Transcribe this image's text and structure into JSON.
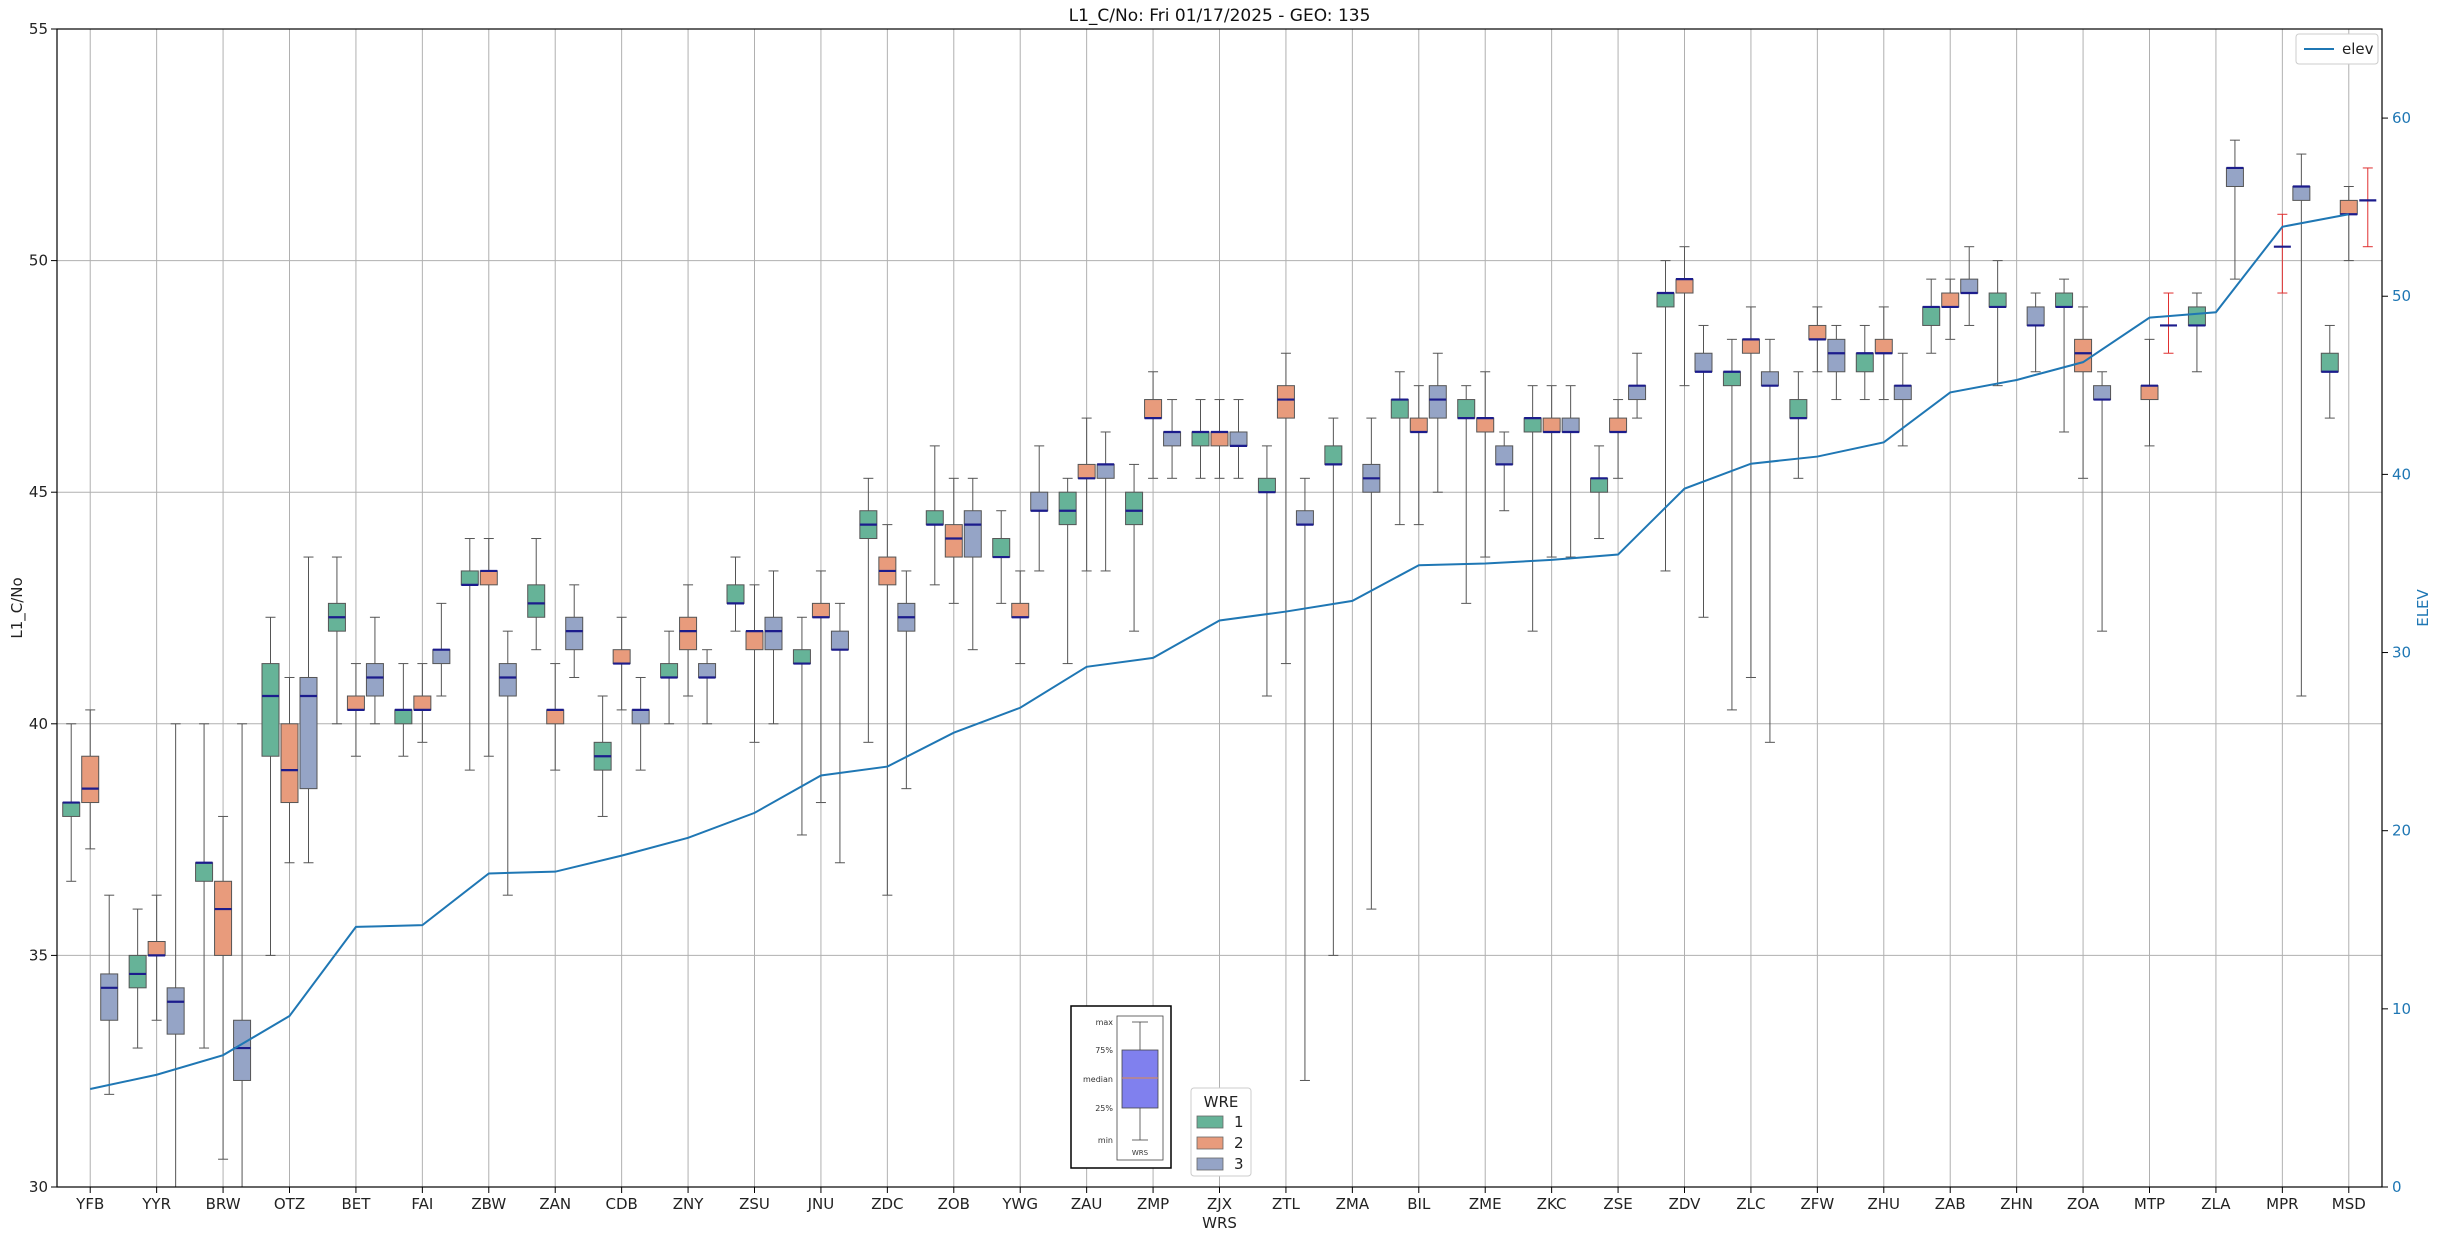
{
  "chart_data": {
    "type": "box",
    "title": "L1_C/No: Fri 01/17/2025 - GEO: 135",
    "xlabel": "WRS",
    "ylabel": "L1_C/No",
    "y2label": "ELEV",
    "ylim": [
      30,
      55
    ],
    "y2lim": [
      0,
      65
    ],
    "yticks": [
      30,
      35,
      40,
      45,
      50,
      55
    ],
    "y2ticks": [
      0,
      10,
      20,
      30,
      40,
      50,
      60
    ],
    "grid": true,
    "categories": [
      "YFB",
      "YYR",
      "BRW",
      "OTZ",
      "BET",
      "FAI",
      "ZBW",
      "ZAN",
      "CDB",
      "ZNY",
      "ZSU",
      "JNU",
      "ZDC",
      "ZOB",
      "YWG",
      "ZAU",
      "ZMP",
      "ZJX",
      "ZTL",
      "ZMA",
      "BIL",
      "ZME",
      "ZKC",
      "ZSE",
      "ZDV",
      "ZLC",
      "ZFW",
      "ZHU",
      "ZAB",
      "ZHN",
      "ZOA",
      "MTP",
      "ZLA",
      "MPR",
      "MSD"
    ],
    "series": [
      {
        "name": "1",
        "color": "#66b398",
        "values": [
          [
            36.6,
            38.0,
            38.3,
            38.3,
            40.0
          ],
          [
            33.0,
            34.3,
            34.6,
            35.0,
            36.0
          ],
          [
            33.0,
            36.6,
            37.0,
            37.0,
            40.0
          ],
          [
            35.0,
            39.3,
            40.6,
            41.3,
            42.3
          ],
          [
            40.0,
            42.0,
            42.3,
            42.6,
            43.6
          ],
          [
            39.3,
            40.0,
            40.3,
            40.3,
            41.3
          ],
          [
            39.0,
            43.0,
            43.0,
            43.3,
            44.0
          ],
          [
            41.6,
            42.3,
            42.6,
            43.0,
            44.0
          ],
          [
            38.0,
            39.0,
            39.3,
            39.6,
            40.6
          ],
          [
            40.0,
            41.0,
            41.0,
            41.3,
            42.0
          ],
          [
            42.0,
            42.6,
            42.6,
            43.0,
            43.6
          ],
          [
            37.6,
            41.3,
            41.3,
            41.6,
            42.3
          ],
          [
            39.6,
            44.0,
            44.3,
            44.6,
            45.3
          ],
          [
            43.0,
            44.3,
            44.3,
            44.6,
            46.0
          ],
          [
            42.6,
            43.6,
            43.6,
            44.0,
            44.6
          ],
          [
            41.3,
            44.3,
            44.6,
            45.0,
            45.3
          ],
          [
            42.0,
            44.3,
            44.6,
            45.0,
            45.6
          ],
          [
            45.3,
            46.0,
            46.3,
            46.3,
            47.0
          ],
          [
            40.6,
            45.0,
            45.0,
            45.3,
            46.0
          ],
          [
            35.0,
            45.6,
            45.6,
            46.0,
            46.6
          ],
          [
            44.3,
            46.6,
            47.0,
            47.0,
            47.6
          ],
          [
            42.6,
            46.6,
            46.6,
            47.0,
            47.3
          ],
          [
            42.0,
            46.3,
            46.6,
            46.6,
            47.3
          ],
          [
            44.0,
            45.0,
            45.3,
            45.3,
            46.0
          ],
          [
            43.3,
            49.0,
            49.3,
            49.3,
            50.0
          ],
          [
            40.3,
            47.3,
            47.6,
            47.6,
            48.3
          ],
          [
            45.3,
            46.6,
            46.6,
            47.0,
            47.6
          ],
          [
            47.0,
            47.6,
            48.0,
            48.0,
            48.6
          ],
          [
            48.0,
            48.6,
            49.0,
            49.0,
            49.6
          ],
          [
            47.3,
            49.0,
            49.0,
            49.3,
            50.0
          ],
          [
            46.3,
            49.0,
            49.0,
            49.3,
            49.6
          ],
          null,
          [
            47.6,
            48.6,
            48.6,
            49.0,
            49.3
          ],
          null,
          [
            46.6,
            47.6,
            47.6,
            48.0,
            48.6
          ]
        ]
      },
      {
        "name": "2",
        "color": "#e89b7c",
        "values": [
          [
            37.3,
            38.3,
            38.6,
            39.3,
            40.3
          ],
          [
            33.6,
            35.0,
            35.0,
            35.3,
            36.3
          ],
          [
            30.6,
            35.0,
            36.0,
            36.6,
            38.0
          ],
          [
            37.0,
            38.3,
            39.0,
            40.0,
            41.0
          ],
          [
            39.3,
            40.3,
            40.3,
            40.6,
            41.3
          ],
          [
            39.6,
            40.3,
            40.3,
            40.6,
            41.3
          ],
          [
            39.3,
            43.0,
            43.3,
            43.3,
            44.0
          ],
          [
            39.0,
            40.0,
            40.3,
            40.3,
            41.3
          ],
          [
            40.3,
            41.3,
            41.3,
            41.6,
            42.3
          ],
          [
            40.6,
            41.6,
            42.0,
            42.3,
            43.0
          ],
          [
            39.6,
            41.6,
            42.0,
            42.0,
            43.0
          ],
          [
            38.3,
            42.3,
            42.3,
            42.6,
            43.3
          ],
          [
            36.3,
            43.0,
            43.3,
            43.6,
            44.3
          ],
          [
            42.6,
            43.6,
            44.0,
            44.3,
            45.3
          ],
          [
            41.3,
            42.3,
            42.3,
            42.6,
            43.3
          ],
          [
            43.3,
            45.3,
            45.3,
            45.6,
            46.6
          ],
          [
            45.3,
            46.6,
            46.6,
            47.0,
            47.6
          ],
          [
            45.3,
            46.0,
            46.3,
            46.3,
            47.0
          ],
          [
            41.3,
            46.6,
            47.0,
            47.3,
            48.0
          ],
          null,
          [
            44.3,
            46.3,
            46.3,
            46.6,
            47.3
          ],
          [
            43.6,
            46.3,
            46.6,
            46.6,
            47.6
          ],
          [
            43.6,
            46.3,
            46.3,
            46.6,
            47.3
          ],
          [
            45.3,
            46.3,
            46.3,
            46.6,
            47.0
          ],
          [
            47.3,
            49.3,
            49.6,
            49.6,
            50.3
          ],
          [
            41.0,
            48.0,
            48.3,
            48.3,
            49.0
          ],
          [
            47.6,
            48.3,
            48.3,
            48.6,
            49.0
          ],
          [
            47.0,
            48.0,
            48.0,
            48.3,
            49.0
          ],
          [
            48.3,
            49.0,
            49.0,
            49.3,
            49.6
          ],
          null,
          [
            45.3,
            47.6,
            48.0,
            48.3,
            49.0
          ],
          [
            46.0,
            47.0,
            47.3,
            47.3,
            48.3
          ],
          null,
          [
            49.3,
            50.3,
            50.3,
            50.3,
            51.0
          ],
          [
            50.0,
            51.0,
            51.0,
            51.3,
            51.6
          ]
        ]
      },
      {
        "name": "3",
        "color": "#95a4c6",
        "values": [
          [
            32.0,
            33.6,
            34.3,
            34.6,
            36.3
          ],
          [
            30.0,
            33.3,
            34.0,
            34.3,
            40.0
          ],
          [
            30.0,
            32.3,
            33.0,
            33.6,
            40.0
          ],
          [
            37.0,
            38.6,
            40.6,
            41.0,
            43.6
          ],
          [
            40.0,
            40.6,
            41.0,
            41.3,
            42.3
          ],
          [
            40.6,
            41.3,
            41.6,
            41.6,
            42.6
          ],
          [
            36.3,
            40.6,
            41.0,
            41.3,
            42.0
          ],
          [
            41.0,
            41.6,
            42.0,
            42.3,
            43.0
          ],
          [
            39.0,
            40.0,
            40.3,
            40.3,
            41.0
          ],
          [
            40.0,
            41.0,
            41.0,
            41.3,
            41.6
          ],
          [
            40.0,
            41.6,
            42.0,
            42.3,
            43.3
          ],
          [
            37.0,
            41.6,
            41.6,
            42.0,
            42.6
          ],
          [
            38.6,
            42.0,
            42.3,
            42.6,
            43.3
          ],
          [
            41.6,
            43.6,
            44.3,
            44.6,
            45.3
          ],
          [
            43.3,
            44.6,
            44.6,
            45.0,
            46.0
          ],
          [
            43.3,
            45.3,
            45.6,
            45.6,
            46.3
          ],
          [
            45.3,
            46.0,
            46.3,
            46.3,
            47.0
          ],
          [
            45.3,
            46.0,
            46.0,
            46.3,
            47.0
          ],
          [
            32.3,
            44.3,
            44.3,
            44.6,
            45.3
          ],
          [
            36.0,
            45.0,
            45.3,
            45.6,
            46.6
          ],
          [
            45.0,
            46.6,
            47.0,
            47.3,
            48.0
          ],
          [
            44.6,
            45.6,
            45.6,
            46.0,
            46.3
          ],
          [
            43.6,
            46.3,
            46.3,
            46.6,
            47.3
          ],
          [
            46.6,
            47.0,
            47.3,
            47.3,
            48.0
          ],
          [
            42.3,
            47.6,
            47.6,
            48.0,
            48.6
          ],
          [
            39.6,
            47.3,
            47.3,
            47.6,
            48.3
          ],
          [
            47.0,
            47.6,
            48.0,
            48.3,
            48.6
          ],
          [
            46.0,
            47.0,
            47.3,
            47.3,
            48.0
          ],
          [
            48.6,
            49.3,
            49.3,
            49.6,
            50.3
          ],
          [
            47.6,
            48.6,
            48.6,
            49.0,
            49.3
          ],
          [
            42.0,
            47.0,
            47.0,
            47.3,
            47.6
          ],
          [
            48.0,
            48.6,
            48.6,
            48.6,
            49.3
          ],
          [
            49.6,
            51.6,
            52.0,
            52.0,
            52.6
          ],
          [
            40.6,
            51.3,
            51.6,
            51.6,
            52.3
          ],
          [
            50.3,
            51.3,
            51.3,
            51.3,
            52.0
          ]
        ]
      }
    ],
    "line": {
      "name": "elev",
      "axis": "right",
      "color": "#1f77b4",
      "values": [
        5.5,
        6.3,
        7.4,
        9.6,
        14.6,
        14.7,
        17.6,
        17.7,
        18.6,
        19.6,
        21.0,
        23.1,
        23.6,
        25.5,
        26.9,
        29.2,
        29.7,
        31.8,
        32.3,
        32.9,
        34.9,
        35.0,
        35.2,
        35.5,
        39.2,
        40.6,
        41.0,
        41.8,
        44.6,
        45.3,
        46.3,
        48.8,
        49.1,
        53.9,
        54.6
      ]
    },
    "legend_line_label": "elev",
    "legend_title": "WRE",
    "legend_entries": [
      "1",
      "2",
      "3"
    ],
    "inset": {
      "labels": [
        "max",
        "75%",
        "median",
        "25%",
        "min"
      ],
      "xlabel": "WRS"
    }
  }
}
